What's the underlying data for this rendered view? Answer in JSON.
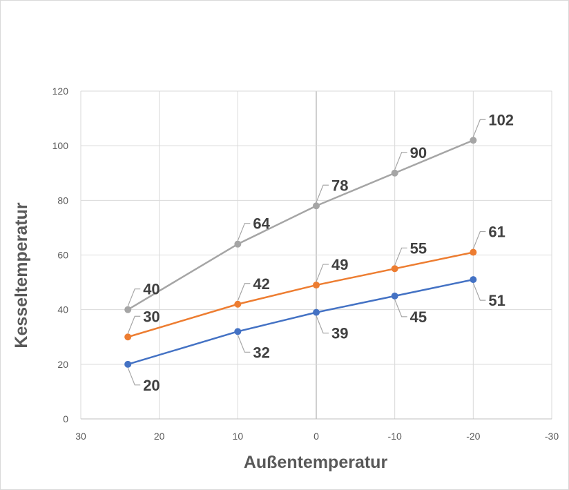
{
  "chart_data": {
    "type": "scatter",
    "xlabel": "Außentemperatur",
    "ylabel": "Kesseltemperatur",
    "xlim": [
      30,
      -30
    ],
    "ylim": [
      0,
      120
    ],
    "x_ticks": [
      30,
      20,
      10,
      0,
      -10,
      -20,
      -30
    ],
    "y_ticks": [
      0,
      20,
      40,
      60,
      80,
      100,
      120
    ],
    "x_reversed": true,
    "grid": true,
    "legend": "none",
    "series": [
      {
        "color": "#4472c4",
        "x": [
          24,
          10,
          0,
          -10,
          -20
        ],
        "y": [
          20,
          32,
          39,
          45,
          51
        ],
        "label_position": "below-right"
      },
      {
        "color": "#ed7d31",
        "x": [
          24,
          10,
          0,
          -10,
          -20
        ],
        "y": [
          30,
          42,
          49,
          55,
          61
        ],
        "label_position": "above-right"
      },
      {
        "color": "#a5a5a5",
        "x": [
          24,
          10,
          0,
          -10,
          -20
        ],
        "y": [
          40,
          64,
          78,
          90,
          102
        ],
        "label_position": "above-right"
      }
    ],
    "leader_line_color": "#a6a6a6",
    "gridline_color": "#d9d9d9",
    "zero_line_color": "#bfbfbf"
  }
}
